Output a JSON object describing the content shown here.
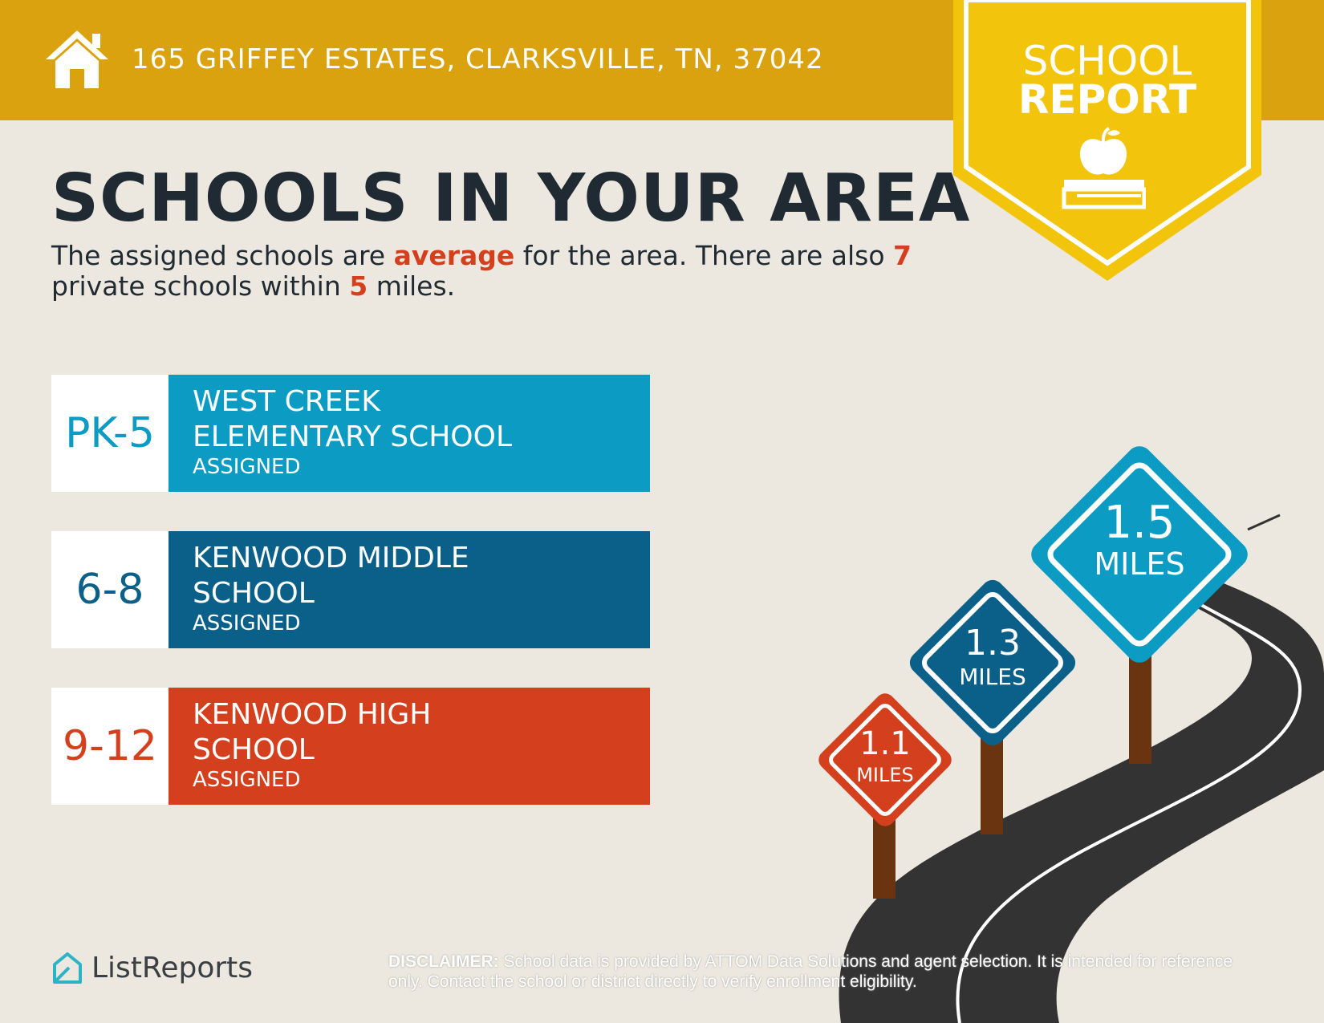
{
  "header": {
    "address": "165 GRIFFEY ESTATES, CLARKSVILLE, TN, 37042",
    "badge_line1": "SCHOOL",
    "badge_line2": "REPORT",
    "colors": {
      "bar": "#d9a20e",
      "badge": "#f2c40c"
    }
  },
  "headline": "SCHOOLS IN YOUR AREA",
  "summary": {
    "part1": "The assigned schools are ",
    "rating": "average",
    "part2": " for the area. There are also ",
    "private_count": "7",
    "part3": " private schools within ",
    "radius": "5",
    "part4": " miles."
  },
  "schools": [
    {
      "grade": "PK-5",
      "name_line1": "WEST CREEK",
      "name_line2": "ELEMENTARY SCHOOL",
      "status": "ASSIGNED",
      "color": "#0b9bc3"
    },
    {
      "grade": "6-8",
      "name_line1": "KENWOOD MIDDLE",
      "name_line2": "SCHOOL",
      "status": "ASSIGNED",
      "color": "#0b6089"
    },
    {
      "grade": "9-12",
      "name_line1": "KENWOOD HIGH",
      "name_line2": "SCHOOL",
      "status": "ASSIGNED",
      "color": "#d4401d"
    }
  ],
  "signs": [
    {
      "distance": "1.1",
      "unit": "MILES",
      "color": "#d4401d"
    },
    {
      "distance": "1.3",
      "unit": "MILES",
      "color": "#0b6089"
    },
    {
      "distance": "1.5",
      "unit": "MILES",
      "color": "#0b9bc3"
    }
  ],
  "footer": {
    "logo_text": "ListReports",
    "disclaimer_label": "DISCLAIMER:",
    "disclaimer_text": " School data is provided by ATTOM Data Solutions and agent selection. It is intended for reference only. Contact the school or district directly to verify enrollment eligibility."
  }
}
